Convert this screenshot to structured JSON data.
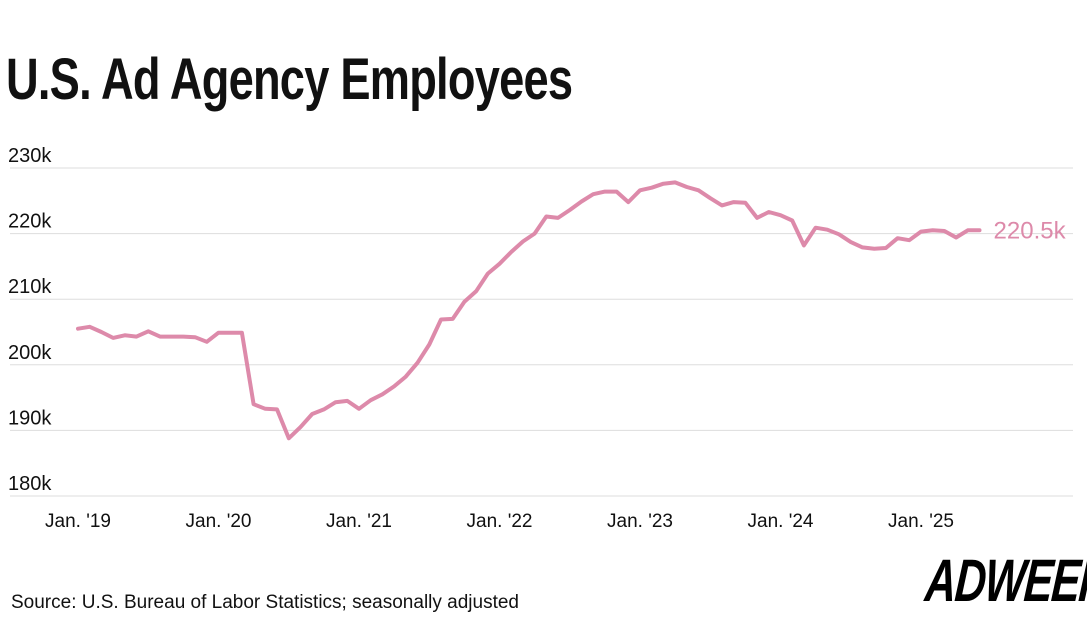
{
  "title": "U.S. Ad Agency Employees",
  "source": "Source: U.S. Bureau of Labor Statistics; seasonally adjusted",
  "brand": "ADWEEK",
  "colors": {
    "line": "#dd8aaa",
    "grid": "#dddddd",
    "text": "#111111"
  },
  "chart_data": {
    "type": "line",
    "title": "U.S. Ad Agency Employees",
    "xlabel": "",
    "ylabel": "",
    "ylim": [
      180,
      230
    ],
    "y_ticks": [
      180,
      190,
      200,
      210,
      220,
      230
    ],
    "y_tick_labels": [
      "180k",
      "190k",
      "200k",
      "210k",
      "220k",
      "230k"
    ],
    "x_ticks": [
      "2019-01",
      "2020-01",
      "2021-01",
      "2022-01",
      "2023-01",
      "2024-01",
      "2025-01"
    ],
    "x_tick_labels": [
      "Jan. '19",
      "Jan. '20",
      "Jan. '21",
      "Jan. '22",
      "Jan. '23",
      "Jan. '24",
      "Jan. '25"
    ],
    "x_range": [
      "2019-01",
      "2026-01"
    ],
    "grid": true,
    "unit": "thousands of employees",
    "end_label": "220.5k",
    "series": [
      {
        "x": [
          "2019-01",
          "2019-02",
          "2019-03",
          "2019-04",
          "2019-05",
          "2019-06",
          "2019-07",
          "2019-08",
          "2019-09",
          "2019-10",
          "2019-11",
          "2019-12",
          "2020-01",
          "2020-02",
          "2020-03",
          "2020-04",
          "2020-05",
          "2020-06",
          "2020-07",
          "2020-08",
          "2020-09",
          "2020-10",
          "2020-11",
          "2020-12",
          "2021-01",
          "2021-02",
          "2021-03",
          "2021-04",
          "2021-05",
          "2021-06",
          "2021-07",
          "2021-08",
          "2021-09",
          "2021-10",
          "2021-11",
          "2021-12",
          "2022-01",
          "2022-02",
          "2022-03",
          "2022-04",
          "2022-05",
          "2022-06",
          "2022-07",
          "2022-08",
          "2022-09",
          "2022-10",
          "2022-11",
          "2022-12",
          "2023-01",
          "2023-02",
          "2023-03",
          "2023-04",
          "2023-05",
          "2023-06",
          "2023-07",
          "2023-08",
          "2023-09",
          "2023-10",
          "2023-11",
          "2023-12",
          "2024-01",
          "2024-02",
          "2024-03",
          "2024-04",
          "2024-05",
          "2024-06",
          "2024-07",
          "2024-08",
          "2024-09",
          "2024-10",
          "2024-11",
          "2024-12",
          "2025-01",
          "2025-02",
          "2025-03",
          "2025-04",
          "2025-05",
          "2025-06"
        ],
        "values": [
          205.5,
          205.8,
          205.0,
          204.1,
          204.5,
          204.3,
          205.1,
          204.3,
          204.3,
          204.3,
          204.2,
          203.5,
          204.9,
          204.9,
          204.9,
          194.0,
          193.3,
          193.2,
          188.8,
          190.5,
          192.5,
          193.2,
          194.3,
          194.5,
          193.3,
          194.6,
          195.5,
          196.7,
          198.2,
          200.3,
          203.1,
          206.9,
          207.0,
          209.6,
          211.2,
          213.9,
          215.4,
          217.2,
          218.8,
          220.0,
          222.6,
          222.4,
          223.6,
          224.9,
          226.0,
          226.4,
          226.4,
          224.8,
          226.6,
          227.0,
          227.6,
          227.8,
          227.1,
          226.6,
          225.4,
          224.3,
          224.8,
          224.7,
          222.4,
          223.3,
          222.8,
          222.0,
          218.2,
          220.9,
          220.6,
          219.9,
          218.7,
          217.9,
          217.7,
          217.8,
          219.3,
          219.0,
          220.3,
          220.5,
          220.4,
          219.4,
          220.5,
          220.5
        ]
      }
    ]
  }
}
